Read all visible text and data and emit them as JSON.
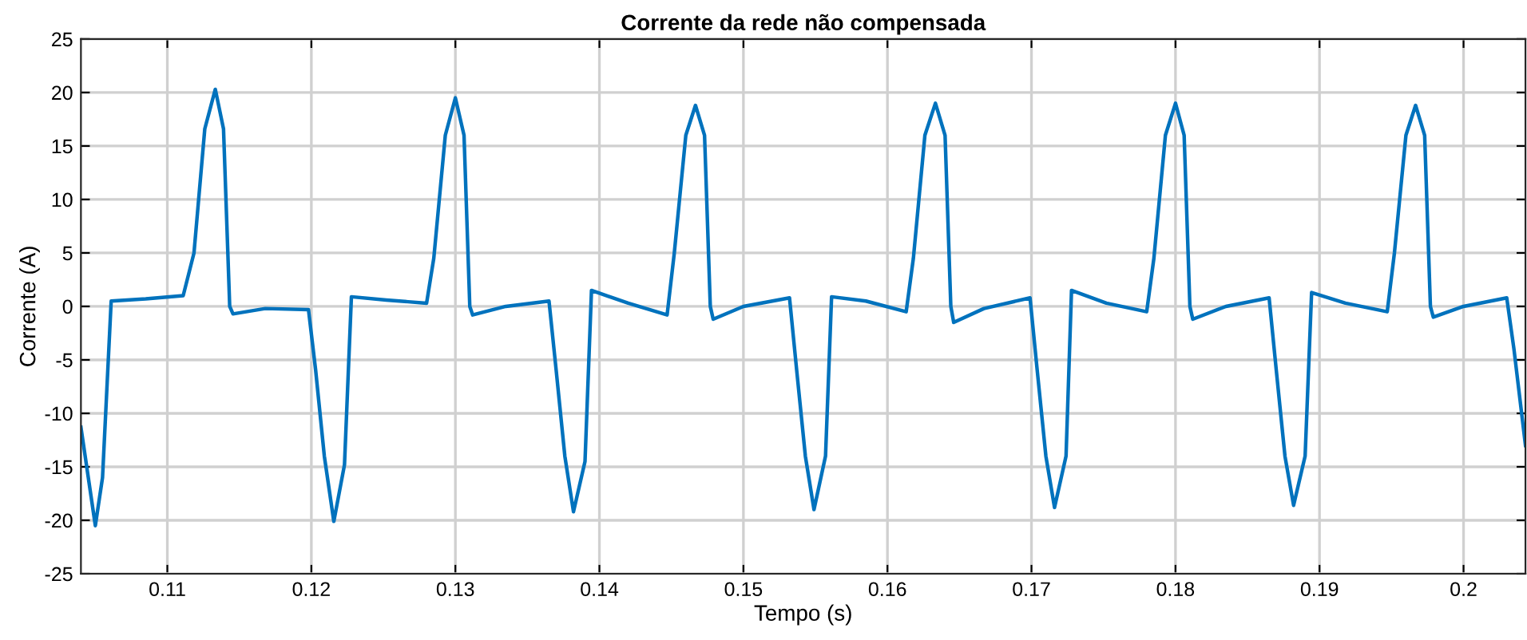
{
  "chart_data": {
    "type": "line",
    "title": "Corrente da rede não compensada",
    "xlabel": "Tempo (s)",
    "ylabel": "Corrente (A)",
    "xlim": [
      0.104,
      0.2043
    ],
    "ylim": [
      -25,
      25
    ],
    "xticks": [
      0.11,
      0.12,
      0.13,
      0.14,
      0.15,
      0.16,
      0.17,
      0.18,
      0.19,
      {
        "value": 0.2,
        "label": "0.2"
      }
    ],
    "yticks": [
      -25,
      -20,
      -15,
      -10,
      -5,
      0,
      5,
      10,
      15,
      20,
      25
    ],
    "grid": true,
    "marker": "none",
    "line_style": "solid",
    "series": [
      {
        "color": "#0072bd",
        "x": [
          0.104,
          0.105,
          0.1055,
          0.1061,
          0.1085,
          0.1111,
          0.11185,
          0.1126,
          0.11333,
          0.1139,
          0.11433,
          0.11456,
          0.1168,
          0.1198,
          0.1203,
          0.1209,
          0.12156,
          0.1223,
          0.12278,
          0.1252,
          0.128,
          0.1285,
          0.1293,
          0.13,
          0.1306,
          0.131,
          0.1312,
          0.1335,
          0.1365,
          0.137,
          0.1376,
          0.1382,
          0.139,
          0.13945,
          0.142,
          0.1447,
          0.1452,
          0.146,
          0.14667,
          0.1473,
          0.1477,
          0.1479,
          0.15,
          0.1532,
          0.1537,
          0.1543,
          0.1549,
          0.1557,
          0.15612,
          0.1585,
          0.1613,
          0.1618,
          0.1626,
          0.16333,
          0.164,
          0.1644,
          0.1646,
          0.1667,
          0.1699,
          0.1704,
          0.171,
          0.1716,
          0.1724,
          0.17278,
          0.1752,
          0.178,
          0.1785,
          0.1793,
          0.18,
          0.1806,
          0.181,
          0.1812,
          0.1835,
          0.1865,
          0.187,
          0.1876,
          0.1882,
          0.189,
          0.18945,
          0.1918,
          0.1947,
          0.1952,
          0.196,
          0.19667,
          0.1973,
          0.1977,
          0.1979,
          0.2,
          0.203,
          0.2035,
          0.2043
        ],
        "values": [
          -11.3,
          -20.5,
          -16,
          0.5,
          0.7,
          1.0,
          5.0,
          16.6,
          20.3,
          16.6,
          0,
          -0.7,
          -0.2,
          -0.3,
          -6,
          -14,
          -20.1,
          -14.8,
          0.9,
          0.6,
          0.3,
          4.5,
          16,
          19.5,
          16,
          0,
          -0.8,
          0,
          0.5,
          -6,
          -14,
          -19.2,
          -14.5,
          1.5,
          0.3,
          -0.8,
          5,
          16,
          18.8,
          16,
          0,
          -1.2,
          0,
          0.8,
          -6,
          -14,
          -19,
          -14,
          0.9,
          0.5,
          -0.5,
          4.5,
          16,
          19.0,
          16,
          0,
          -1.5,
          -0.2,
          0.8,
          -6,
          -14,
          -18.8,
          -14,
          1.5,
          0.3,
          -0.5,
          4.5,
          16,
          19.0,
          16,
          0,
          -1.2,
          0,
          0.8,
          -6,
          -14,
          -18.6,
          -14,
          1.3,
          0.3,
          -0.5,
          5,
          16,
          18.8,
          16,
          0,
          -1,
          0,
          0.8,
          -4,
          -13
        ]
      }
    ]
  }
}
